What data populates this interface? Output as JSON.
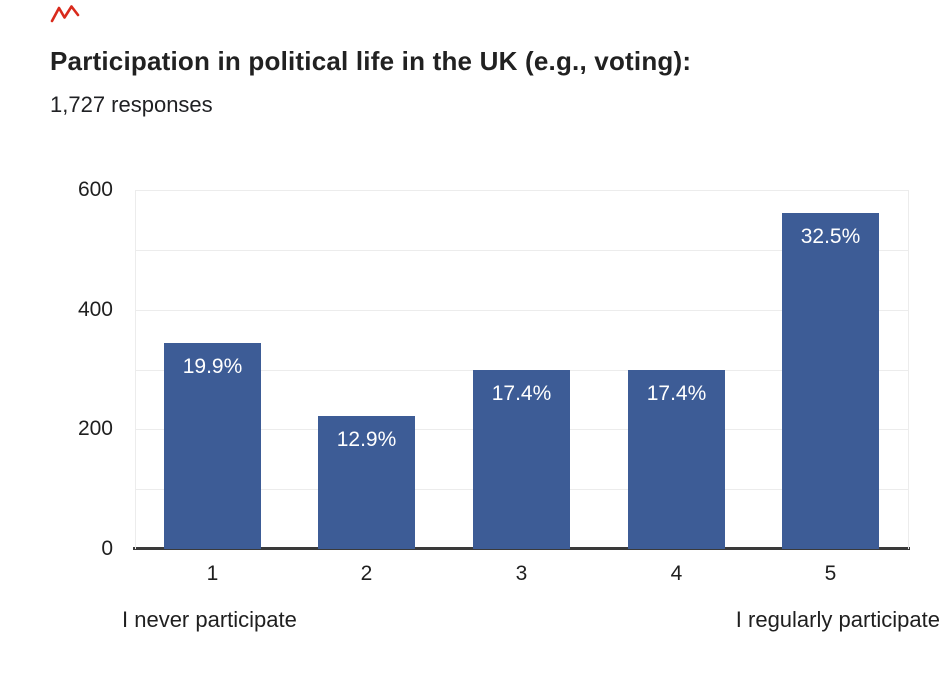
{
  "page": {
    "background": "#ffffff"
  },
  "annotation": {
    "name": "red-scribble-mark",
    "color": "#d92a1c"
  },
  "header": {
    "title": "Participation in political life in the UK (e.g., voting):",
    "subtitle": "1,727 responses"
  },
  "chart_data": {
    "type": "bar",
    "title": "Participation in political life in the UK (e.g., voting):",
    "subtitle": "1,727 responses",
    "total_responses": 1727,
    "categories": [
      "1",
      "2",
      "3",
      "4",
      "5"
    ],
    "values": [
      344,
      223,
      300,
      300,
      561
    ],
    "bar_percent_labels": [
      "19.9%",
      "12.9%",
      "17.4%",
      "17.4%",
      "32.5%"
    ],
    "xlabel_left": "I never participate",
    "xlabel_right": "I regularly participate",
    "ylim": [
      0,
      600
    ],
    "yticks": [
      600,
      400,
      200,
      0
    ],
    "gridline_step": 100,
    "grid": true,
    "legend": false,
    "bar_color": "#3D5C96",
    "bar_label_color": "#ffffff",
    "grid_color": "#ececec",
    "axis_color": "#3a3a3a"
  }
}
